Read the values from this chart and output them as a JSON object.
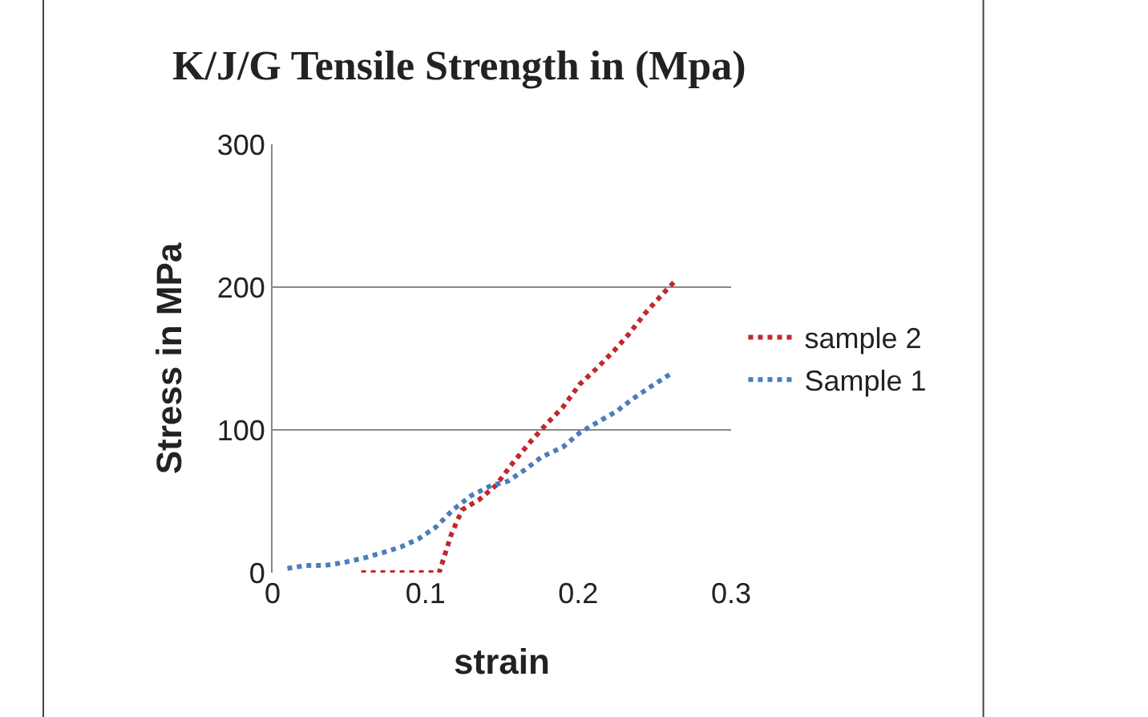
{
  "chart_data": {
    "type": "line",
    "title": "K/J/G Tensile Strength in (Mpa)",
    "xlabel": "strain",
    "ylabel": "Stress in MPa",
    "xlim": [
      0,
      0.3
    ],
    "xticks": [
      0,
      0.1,
      0.2,
      0.3
    ],
    "ylim": [
      0,
      300
    ],
    "yticks": [
      0,
      100,
      200,
      300
    ],
    "grid": "y",
    "legend": "right",
    "line_style": "dotted",
    "marker": "none",
    "series": [
      {
        "name": "sample 2",
        "color": "#c0282d",
        "x": [
          0.058,
          0.072,
          0.083,
          0.096,
          0.109,
          0.117,
          0.124,
          0.135,
          0.146,
          0.158,
          0.169,
          0.18,
          0.19,
          0.201,
          0.212,
          0.223,
          0.233,
          0.244,
          0.255,
          0.264
        ],
        "values": [
          0,
          0,
          0,
          0,
          0,
          27,
          44,
          51,
          61,
          78,
          92,
          105,
          116,
          132,
          143,
          155,
          167,
          182,
          195,
          205
        ]
      },
      {
        "name": "Sample 1",
        "color": "#4a7ebb",
        "x": [
          0.0097,
          0.022,
          0.034,
          0.046,
          0.059,
          0.072,
          0.084,
          0.096,
          0.107,
          0.118,
          0.13,
          0.143,
          0.154,
          0.165,
          0.176,
          0.19,
          0.201,
          0.212,
          0.225,
          0.236,
          0.247,
          0.26
        ],
        "values": [
          3,
          5,
          5,
          7,
          10,
          14,
          18,
          24,
          32,
          44,
          54,
          61,
          64,
          72,
          81,
          88,
          98,
          105,
          113,
          122,
          130,
          139
        ]
      }
    ]
  }
}
